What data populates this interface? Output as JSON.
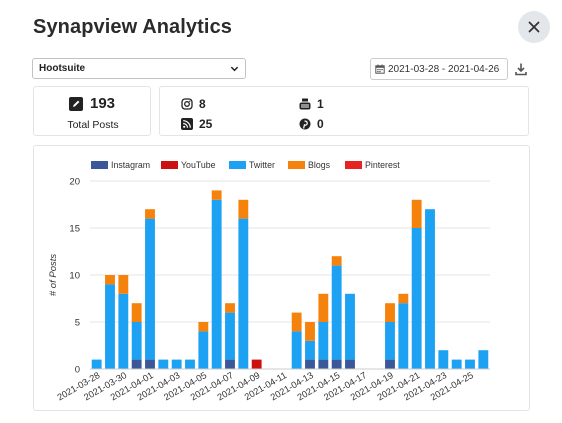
{
  "modal": {
    "title": "Synapview Analytics",
    "close_icon": "close-icon"
  },
  "filters": {
    "account_select": "Hootsuite",
    "date_range": "2021-03-28 - 2021-04-26",
    "calendar_icon": "calendar-icon",
    "download_icon": "download-icon"
  },
  "summary": {
    "total_posts": "193",
    "total_label": "Total Posts",
    "sources": [
      {
        "key": "instagram",
        "icon": "instagram-icon",
        "count": "8"
      },
      {
        "key": "youtube",
        "icon": "youtube-icon",
        "count": "1"
      },
      {
        "key": "rss",
        "icon": "rss-icon",
        "count": "25"
      },
      {
        "key": "pinterest",
        "icon": "pinterest-icon",
        "count": "0"
      }
    ]
  },
  "colors": {
    "instagram": "#3b5998",
    "youtube": "#cc1111",
    "twitter": "#1da1f2",
    "blogs": "#f5820d",
    "pinterest": "#e62222"
  },
  "chart_data": {
    "type": "bar",
    "stacked": true,
    "ylabel": "# of Posts",
    "xlabel": "",
    "ylim": [
      0,
      20
    ],
    "yticks": [
      0,
      5,
      10,
      15,
      20
    ],
    "grid": true,
    "legend": "top",
    "categories": [
      "2021-03-28",
      "2021-03-29",
      "2021-03-30",
      "2021-03-31",
      "2021-04-01",
      "2021-04-02",
      "2021-04-03",
      "2021-04-04",
      "2021-04-05",
      "2021-04-06",
      "2021-04-07",
      "2021-04-08",
      "2021-04-09",
      "2021-04-10",
      "2021-04-11",
      "2021-04-12",
      "2021-04-13",
      "2021-04-14",
      "2021-04-15",
      "2021-04-16",
      "2021-04-17",
      "2021-04-18",
      "2021-04-19",
      "2021-04-20",
      "2021-04-21",
      "2021-04-22",
      "2021-04-23",
      "2021-04-24",
      "2021-04-25",
      "2021-04-26"
    ],
    "tick_labels": [
      "2021-03-28",
      "2021-03-30",
      "2021-04-01",
      "2021-04-03",
      "2021-04-05",
      "2021-04-07",
      "2021-04-09",
      "2021-04-11",
      "2021-04-13",
      "2021-04-15",
      "2021-04-17",
      "2021-04-19",
      "2021-04-21",
      "2021-04-23",
      "2021-04-25"
    ],
    "series": [
      {
        "name": "Instagram",
        "color": "#3b5998",
        "values": [
          0,
          0,
          0,
          1,
          1,
          0,
          0,
          0,
          0,
          0,
          1,
          0,
          0,
          0,
          0,
          0,
          1,
          1,
          1,
          1,
          0,
          0,
          1,
          0,
          0,
          0,
          0,
          0,
          0,
          0
        ]
      },
      {
        "name": "YouTube",
        "color": "#cc1111",
        "values": [
          0,
          0,
          0,
          0,
          0,
          0,
          0,
          0,
          0,
          0,
          0,
          0,
          1,
          0,
          0,
          0,
          0,
          0,
          0,
          0,
          0,
          0,
          0,
          0,
          0,
          0,
          0,
          0,
          0,
          0
        ]
      },
      {
        "name": "Twitter",
        "color": "#1da1f2",
        "values": [
          1,
          9,
          8,
          4,
          15,
          1,
          1,
          1,
          4,
          18,
          5,
          16,
          0,
          0,
          0,
          4,
          2,
          4,
          10,
          7,
          0,
          0,
          4,
          7,
          15,
          17,
          2,
          1,
          1,
          2
        ]
      },
      {
        "name": "Blogs",
        "color": "#f5820d",
        "values": [
          0,
          1,
          2,
          2,
          1,
          0,
          0,
          0,
          1,
          1,
          1,
          2,
          0,
          0,
          0,
          2,
          2,
          3,
          1,
          0,
          0,
          0,
          2,
          1,
          3,
          0,
          0,
          0,
          0,
          0
        ]
      },
      {
        "name": "Pinterest",
        "color": "#e62222",
        "values": [
          0,
          0,
          0,
          0,
          0,
          0,
          0,
          0,
          0,
          0,
          0,
          0,
          0,
          0,
          0,
          0,
          0,
          0,
          0,
          0,
          0,
          0,
          0,
          0,
          0,
          0,
          0,
          0,
          0,
          0
        ]
      }
    ]
  }
}
